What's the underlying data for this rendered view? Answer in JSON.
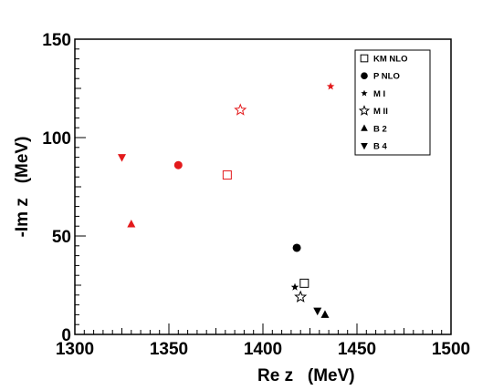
{
  "chart_data": {
    "type": "scatter",
    "xlabel": "Re z   (MeV)",
    "ylabel": "-Im z   (MeV)",
    "xlim": [
      1300,
      1500
    ],
    "ylim": [
      0,
      150
    ],
    "x_ticks": [
      "1300",
      "1350",
      "1400",
      "1450",
      "1500"
    ],
    "y_ticks": [
      "0",
      "50",
      "100",
      "150"
    ],
    "grid": false,
    "legend_position": "top-right",
    "colors": {
      "set1": "#e31a1c",
      "set2": "#000000"
    },
    "series": [
      {
        "name": "KM NLO",
        "marker": "open-square",
        "points": [
          {
            "x": 1381,
            "y": 81,
            "color": "#e31a1c"
          },
          {
            "x": 1422,
            "y": 26,
            "color": "#000000"
          }
        ]
      },
      {
        "name": "P NLO",
        "marker": "filled-circle",
        "points": [
          {
            "x": 1355,
            "y": 86,
            "color": "#e31a1c"
          },
          {
            "x": 1418,
            "y": 44,
            "color": "#000000"
          }
        ]
      },
      {
        "name": "M I",
        "marker": "filled-star",
        "points": [
          {
            "x": 1436,
            "y": 126,
            "color": "#e31a1c"
          },
          {
            "x": 1417,
            "y": 24,
            "color": "#000000"
          }
        ]
      },
      {
        "name": "M II",
        "marker": "open-star",
        "points": [
          {
            "x": 1388,
            "y": 114,
            "color": "#e31a1c"
          },
          {
            "x": 1420,
            "y": 19,
            "color": "#000000"
          }
        ]
      },
      {
        "name": "B 2",
        "marker": "filled-triangle-up",
        "points": [
          {
            "x": 1330,
            "y": 56,
            "color": "#e31a1c"
          },
          {
            "x": 1433,
            "y": 10,
            "color": "#000000"
          }
        ]
      },
      {
        "name": "B 4",
        "marker": "filled-triangle-down",
        "points": [
          {
            "x": 1325,
            "y": 90,
            "color": "#e31a1c"
          },
          {
            "x": 1429,
            "y": 12,
            "color": "#000000"
          }
        ]
      }
    ]
  }
}
